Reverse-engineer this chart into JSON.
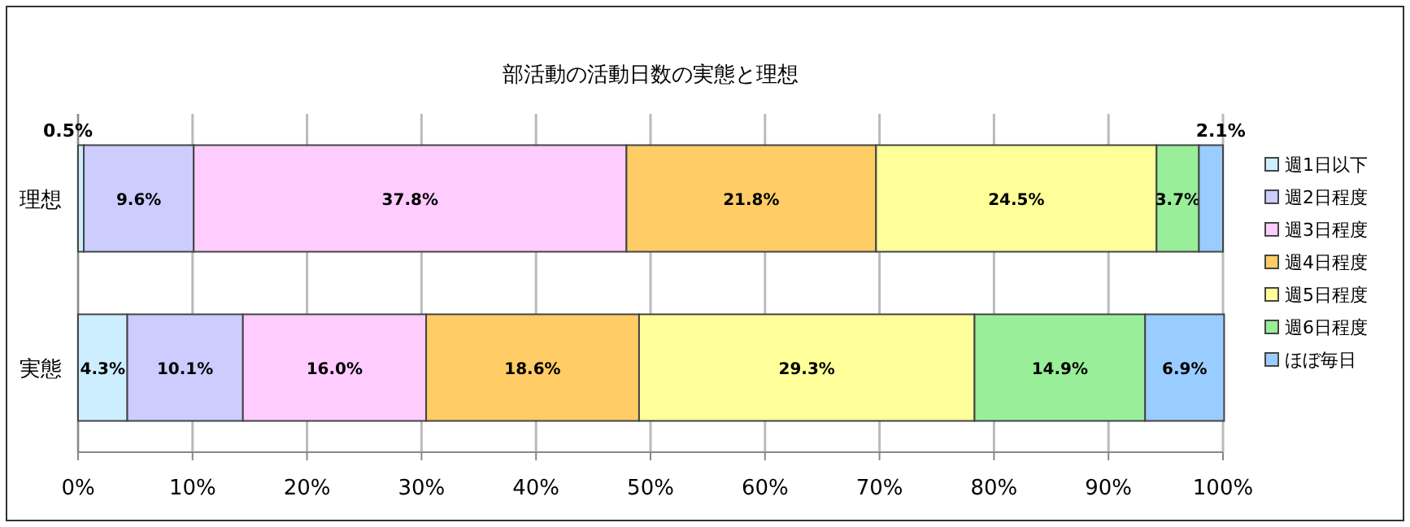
{
  "chart_data": {
    "type": "bar",
    "orientation": "horizontal",
    "stacked": true,
    "title": "部活動の活動日数の実態と理想",
    "categories": [
      "理想",
      "実態"
    ],
    "series": [
      {
        "name": "週1日以下",
        "color": "#cceeff",
        "values": [
          0.5,
          4.3
        ],
        "value_labels": [
          "0.5%",
          "4.3%"
        ]
      },
      {
        "name": "週2日程度",
        "color": "#ccccff",
        "values": [
          9.6,
          10.1
        ],
        "value_labels": [
          "9.6%",
          "10.1%"
        ]
      },
      {
        "name": "週3日程度",
        "color": "#ffccff",
        "values": [
          37.8,
          16.0
        ],
        "value_labels": [
          "37.8%",
          "16.0%"
        ]
      },
      {
        "name": "週4日程度",
        "color": "#ffcc66",
        "values": [
          21.8,
          18.6
        ],
        "value_labels": [
          "21.8%",
          "18.6%"
        ]
      },
      {
        "name": "週5日程度",
        "color": "#ffff99",
        "values": [
          24.5,
          29.3
        ],
        "value_labels": [
          "24.5%",
          "29.3%"
        ]
      },
      {
        "name": "週6日程度",
        "color": "#99ee99",
        "values": [
          3.7,
          14.9
        ],
        "value_labels": [
          "3.7%",
          "14.9%"
        ]
      },
      {
        "name": "ほぼ毎日",
        "color": "#99ccff",
        "values": [
          2.1,
          6.9
        ],
        "value_labels": [
          "2.1%",
          "6.9%"
        ]
      }
    ],
    "xlim": [
      0,
      100
    ],
    "xticks": [
      {
        "value": 0,
        "label": "0%"
      },
      {
        "value": 10,
        "label": "10%"
      },
      {
        "value": 20,
        "label": "20%"
      },
      {
        "value": 30,
        "label": "30%"
      },
      {
        "value": 40,
        "label": "40%"
      },
      {
        "value": 50,
        "label": "50%"
      },
      {
        "value": 60,
        "label": "60%"
      },
      {
        "value": 70,
        "label": "70%"
      },
      {
        "value": 80,
        "label": "80%"
      },
      {
        "value": 90,
        "label": "90%"
      },
      {
        "value": 100,
        "label": "100%"
      }
    ],
    "grid": "x",
    "legend": "right"
  }
}
